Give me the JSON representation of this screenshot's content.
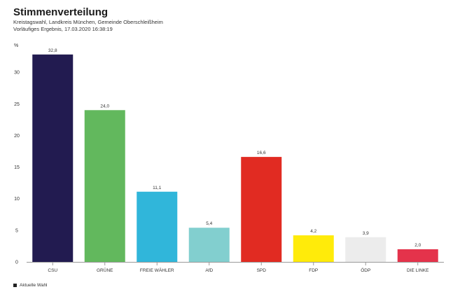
{
  "header": {
    "title": "Stimmenverteilung",
    "subtitle": "Kreistagswahl, Landkreis München, Gemeinde Oberschleißheim",
    "status": "Vorläufiges Ergebnis, 17.03.2020 16:38:19"
  },
  "chart_data": {
    "type": "bar",
    "title": "Stimmenverteilung",
    "ylabel": "%",
    "ylim": [
      0,
      34
    ],
    "yticks": [
      0,
      5,
      10,
      15,
      20,
      25,
      30
    ],
    "categories": [
      "CSU",
      "GRÜNE",
      "FREIE WÄHLER",
      "AfD",
      "SPD",
      "FDP",
      "ÖDP",
      "DIE LINKE"
    ],
    "values": [
      32.8,
      24.0,
      11.1,
      5.4,
      16.6,
      4.2,
      3.9,
      2.0
    ],
    "value_labels": [
      "32,8",
      "24,0",
      "11,1",
      "5,4",
      "16,6",
      "4,2",
      "3,9",
      "2,0"
    ],
    "colors": [
      "#221b50",
      "#62b85d",
      "#30b6da",
      "#82cfcf",
      "#e12b22",
      "#ffeb0a",
      "#ececec",
      "#e4334b"
    ],
    "grid": false,
    "legend_position": "bottom-left",
    "series": [
      {
        "name": "Aktuelle Wahl",
        "values": [
          32.8,
          24.0,
          11.1,
          5.4,
          16.6,
          4.2,
          3.9,
          2.0
        ]
      }
    ]
  }
}
